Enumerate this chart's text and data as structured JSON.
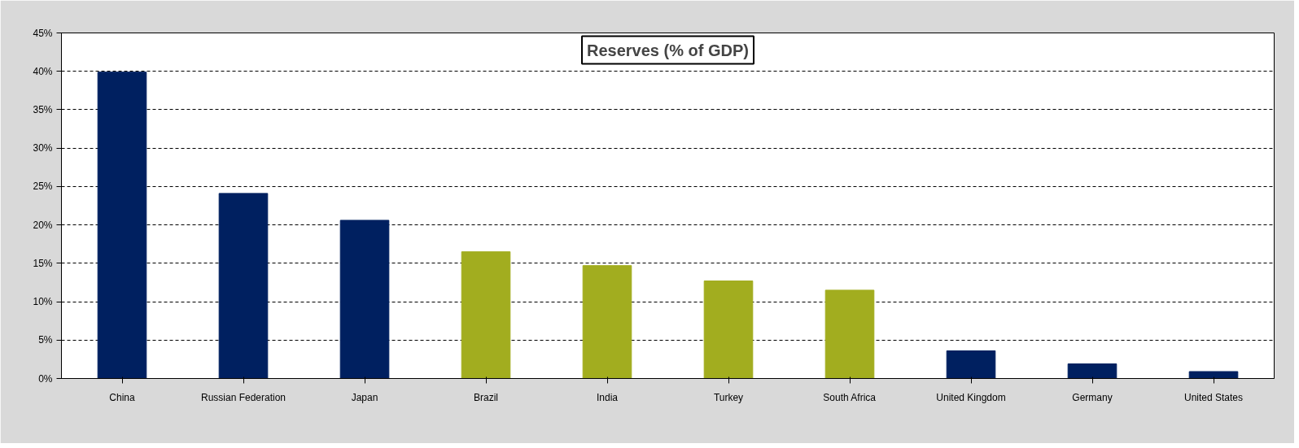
{
  "chart_data": {
    "type": "bar",
    "title": "Reserves (% of GDP)",
    "categories": [
      "China",
      "Russian Federation",
      "Japan",
      "Brazil",
      "India",
      "Turkey",
      "South Africa",
      "United Kingdom",
      "Germany",
      "United States"
    ],
    "values": [
      39.9,
      24.1,
      20.6,
      16.5,
      14.7,
      12.7,
      11.5,
      3.6,
      1.9,
      0.9
    ],
    "colors": [
      "#002060",
      "#002060",
      "#002060",
      "#a2ad1f",
      "#a2ad1f",
      "#a2ad1f",
      "#a2ad1f",
      "#002060",
      "#002060",
      "#002060"
    ],
    "ylim": [
      0,
      45
    ],
    "yticks": [
      {
        "value": 0,
        "label": "0%"
      },
      {
        "value": 5,
        "label": "5%"
      },
      {
        "value": 10,
        "label": "10%"
      },
      {
        "value": 15,
        "label": "15%"
      },
      {
        "value": 20,
        "label": "20%"
      },
      {
        "value": 25,
        "label": "25%"
      },
      {
        "value": 30,
        "label": "30%"
      },
      {
        "value": 35,
        "label": "35%"
      },
      {
        "value": 40,
        "label": "40%"
      },
      {
        "value": 45,
        "label": "45%"
      }
    ],
    "grid": "y"
  }
}
